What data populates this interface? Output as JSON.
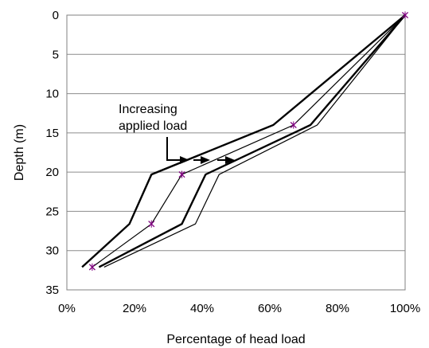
{
  "chart_data": {
    "type": "line",
    "xlabel": "Percentage of head load",
    "ylabel": "Depth (m)",
    "xlim": [
      0,
      100
    ],
    "ylim": [
      0,
      35
    ],
    "y_inverted": true,
    "x_ticks": [
      "0%",
      "20%",
      "40%",
      "60%",
      "80%",
      "100%"
    ],
    "y_ticks": [
      "0",
      "5",
      "10",
      "15",
      "20",
      "25",
      "30",
      "35"
    ],
    "grid": "horizontal",
    "legend": "none",
    "annotation": {
      "lines": [
        "Increasing",
        "applied load"
      ]
    },
    "series": [
      {
        "style": "thick",
        "color": "#000000",
        "points": [
          [
            100,
            0
          ],
          [
            61,
            14
          ],
          [
            25,
            20.3
          ],
          [
            18.5,
            26.6
          ],
          [
            4.5,
            32.1
          ]
        ]
      },
      {
        "style": "thin-marked",
        "color": "#000000",
        "marker_color": "#800080",
        "points": [
          [
            100,
            0
          ],
          [
            67,
            14
          ],
          [
            34,
            20.3
          ],
          [
            25,
            26.6
          ],
          [
            7.5,
            32.1
          ]
        ]
      },
      {
        "style": "thick",
        "color": "#000000",
        "points": [
          [
            100,
            0
          ],
          [
            72,
            14
          ],
          [
            41,
            20.3
          ],
          [
            34,
            26.6
          ],
          [
            9.5,
            32.1
          ]
        ]
      },
      {
        "style": "thin",
        "color": "#000000",
        "points": [
          [
            100,
            0
          ],
          [
            74,
            14
          ],
          [
            45,
            20.3
          ],
          [
            38,
            26.6
          ],
          [
            11,
            32.1
          ]
        ]
      }
    ]
  }
}
